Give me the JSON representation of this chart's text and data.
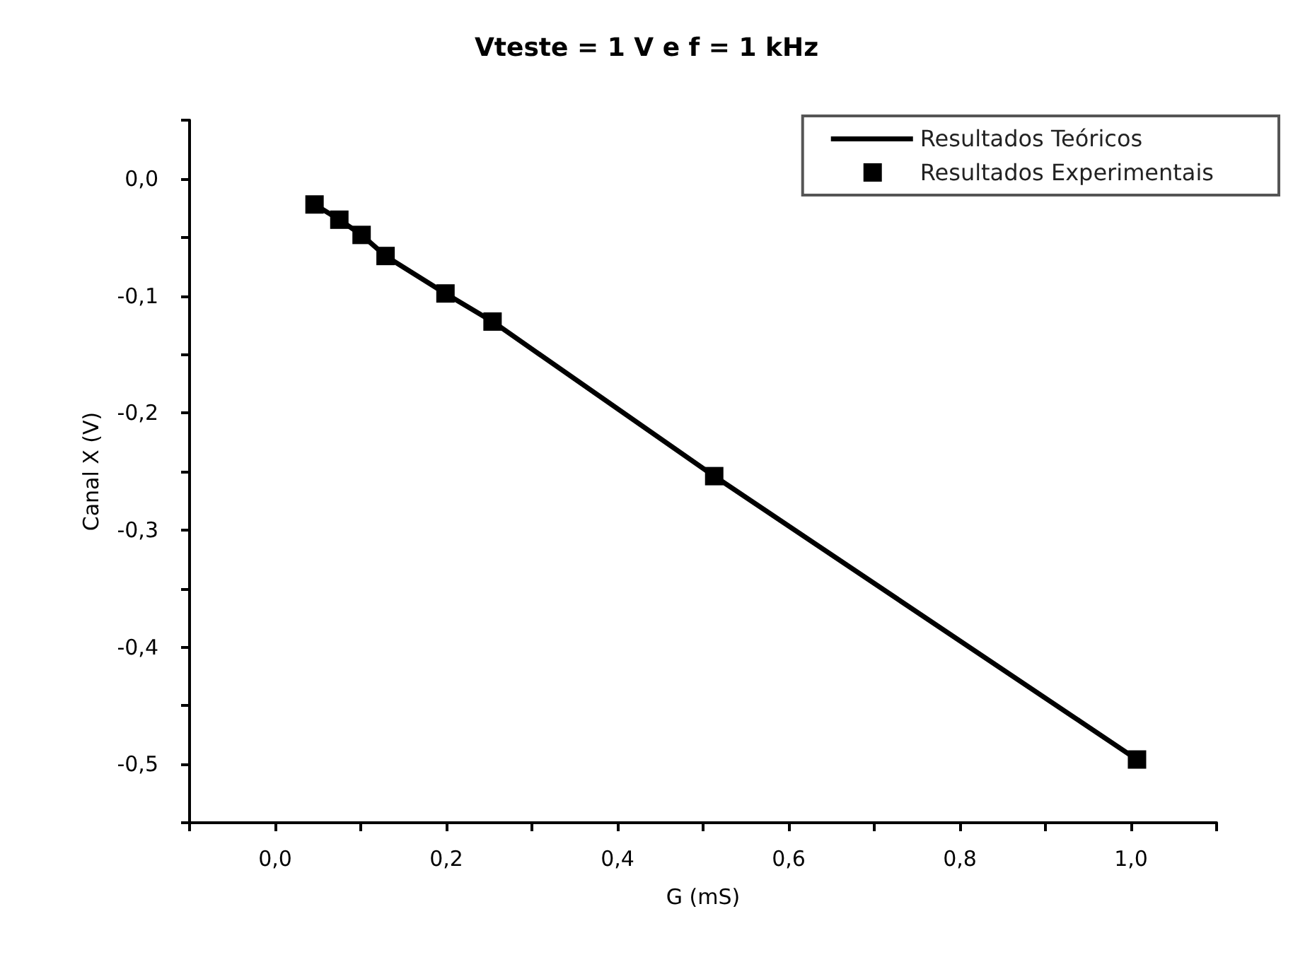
{
  "chart_data": {
    "type": "line",
    "title": "Vteste = 1 V e f = 1 kHz",
    "xlabel": "G (mS)",
    "ylabel": "Canal X (V)",
    "series": [
      {
        "name": "Resultados Teóricos",
        "color": "#000000",
        "marker": "none",
        "line_style": "solid",
        "x": [
          0.046,
          0.075,
          0.101,
          0.129,
          0.199,
          0.254,
          0.513,
          1.007
        ],
        "values": [
          -0.022,
          -0.035,
          -0.048,
          -0.066,
          -0.098,
          -0.122,
          -0.254,
          -0.496
        ]
      },
      {
        "name": "Resultados Experimentais",
        "type": "scatter",
        "color": "#000000",
        "marker": "square",
        "x": [
          0.046,
          0.075,
          0.101,
          0.129,
          0.199,
          0.254,
          0.513,
          1.007
        ],
        "values": [
          -0.022,
          -0.035,
          -0.048,
          -0.066,
          -0.098,
          -0.122,
          -0.254,
          -0.496
        ]
      }
    ],
    "xlim": [
      -0.1,
      1.1
    ],
    "xticks": [
      {
        "value": -0.1,
        "label": null
      },
      {
        "value": 0,
        "label": "0,0"
      },
      {
        "value": 0.1,
        "label": null
      },
      {
        "value": 0.2,
        "label": "0,2"
      },
      {
        "value": 0.3,
        "label": null
      },
      {
        "value": 0.4,
        "label": "0,4"
      },
      {
        "value": 0.5,
        "label": null
      },
      {
        "value": 0.6,
        "label": "0,6"
      },
      {
        "value": 0.7,
        "label": null
      },
      {
        "value": 0.8,
        "label": "0,8"
      },
      {
        "value": 0.9,
        "label": null
      },
      {
        "value": 1.0,
        "label": "1,0"
      },
      {
        "value": 1.1,
        "label": null
      }
    ],
    "ylim": [
      -0.55,
      0.05
    ],
    "yticks": [
      {
        "value": -0.55,
        "label": null
      },
      {
        "value": -0.5,
        "label": "-0,5"
      },
      {
        "value": -0.45,
        "label": null
      },
      {
        "value": -0.4,
        "label": "-0,4"
      },
      {
        "value": -0.35,
        "label": null
      },
      {
        "value": -0.3,
        "label": "-0,3"
      },
      {
        "value": -0.25,
        "label": null
      },
      {
        "value": -0.2,
        "label": "-0,2"
      },
      {
        "value": -0.15,
        "label": null
      },
      {
        "value": -0.1,
        "label": "-0,1"
      },
      {
        "value": -0.05,
        "label": null
      },
      {
        "value": 0,
        "label": "0,0"
      },
      {
        "value": 0.05,
        "label": null
      }
    ],
    "grid": false,
    "legend": "top right"
  }
}
